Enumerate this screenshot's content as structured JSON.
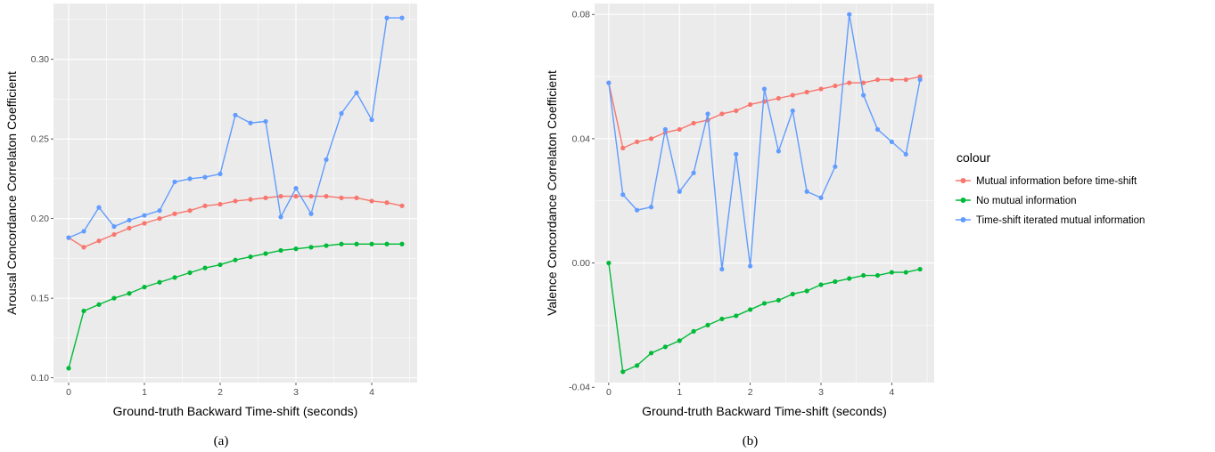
{
  "chart_data": [
    {
      "type": "line",
      "caption": "(a)",
      "xlabel": "Ground-truth Backward Time-shift (seconds)",
      "ylabel": "Arousal Concordance Correlaton Coefficient",
      "xlim": [
        -0.2,
        4.6
      ],
      "ylim": [
        0.097,
        0.335
      ],
      "xticks": [
        0,
        1,
        2,
        3,
        4
      ],
      "xtick_labels": [
        "0",
        "1",
        "2",
        "3",
        "4"
      ],
      "yticks": [
        0.1,
        0.15,
        0.2,
        0.25,
        0.3
      ],
      "ytick_labels": [
        "0.10",
        "0.15",
        "0.20",
        "0.25",
        "0.30"
      ],
      "grid": true,
      "x": [
        0,
        0.2,
        0.4,
        0.6,
        0.8,
        1.0,
        1.2,
        1.4,
        1.6,
        1.8,
        2.0,
        2.2,
        2.4,
        2.6,
        2.8,
        3.0,
        3.2,
        3.4,
        3.6,
        3.8,
        4.0,
        4.2,
        4.4
      ],
      "series": [
        {
          "name": "Mutual information before time-shift",
          "color": "#F8766D",
          "values": [
            0.188,
            0.182,
            0.186,
            0.19,
            0.194,
            0.197,
            0.2,
            0.203,
            0.205,
            0.208,
            0.209,
            0.211,
            0.212,
            0.213,
            0.214,
            0.214,
            0.214,
            0.214,
            0.213,
            0.213,
            0.211,
            0.21,
            0.208
          ]
        },
        {
          "name": "No mutual information",
          "color": "#00BA38",
          "values": [
            0.106,
            0.142,
            0.146,
            0.15,
            0.153,
            0.157,
            0.16,
            0.163,
            0.166,
            0.169,
            0.171,
            0.174,
            0.176,
            0.178,
            0.18,
            0.181,
            0.182,
            0.183,
            0.184,
            0.184,
            0.184,
            0.184,
            0.184
          ]
        },
        {
          "name": "Time-shift iterated mutual information",
          "color": "#619CFF",
          "values": [
            0.188,
            0.192,
            0.207,
            0.195,
            0.199,
            0.202,
            0.205,
            0.223,
            0.225,
            0.226,
            0.228,
            0.265,
            0.26,
            0.261,
            0.201,
            0.219,
            0.203,
            0.237,
            0.266,
            0.279,
            0.262,
            0.326,
            0.326
          ]
        }
      ]
    },
    {
      "type": "line",
      "caption": "(b)",
      "xlabel": "Ground-truth Backward Time-shift (seconds)",
      "ylabel": "Valence Concordance Correlaton Coefficient",
      "xlim": [
        -0.2,
        4.6
      ],
      "ylim": [
        -0.0385,
        0.0835
      ],
      "xticks": [
        0,
        1,
        2,
        3,
        4
      ],
      "xtick_labels": [
        "0",
        "1",
        "2",
        "3",
        "4"
      ],
      "yticks": [
        -0.04,
        0.0,
        0.04,
        0.08
      ],
      "ytick_labels": [
        "-0.04",
        "0.00",
        "0.04",
        "0.08"
      ],
      "grid": true,
      "legend_position": "right",
      "x": [
        0,
        0.2,
        0.4,
        0.6,
        0.8,
        1.0,
        1.2,
        1.4,
        1.6,
        1.8,
        2.0,
        2.2,
        2.4,
        2.6,
        2.8,
        3.0,
        3.2,
        3.4,
        3.6,
        3.8,
        4.0,
        4.2,
        4.4
      ],
      "series": [
        {
          "name": "Mutual information before time-shift",
          "color": "#F8766D",
          "values": [
            0.058,
            0.037,
            0.039,
            0.04,
            0.042,
            0.043,
            0.045,
            0.046,
            0.048,
            0.049,
            0.051,
            0.052,
            0.053,
            0.054,
            0.055,
            0.056,
            0.057,
            0.058,
            0.058,
            0.059,
            0.059,
            0.059,
            0.06
          ]
        },
        {
          "name": "No mutual information",
          "color": "#00BA38",
          "values": [
            0.0,
            -0.035,
            -0.033,
            -0.029,
            -0.027,
            -0.025,
            -0.022,
            -0.02,
            -0.018,
            -0.017,
            -0.015,
            -0.013,
            -0.012,
            -0.01,
            -0.009,
            -0.007,
            -0.006,
            -0.005,
            -0.004,
            -0.004,
            -0.003,
            -0.003,
            -0.002
          ]
        },
        {
          "name": "Time-shift iterated mutual information",
          "color": "#619CFF",
          "values": [
            0.058,
            0.022,
            0.017,
            0.018,
            0.043,
            0.023,
            0.029,
            0.048,
            -0.002,
            0.035,
            -0.001,
            0.056,
            0.036,
            0.049,
            0.023,
            0.021,
            0.031,
            0.08,
            0.054,
            0.043,
            0.039,
            0.035,
            0.059
          ]
        }
      ]
    }
  ],
  "legend": {
    "title": "colour",
    "items": [
      {
        "label": "Mutual information before time-shift",
        "color": "#F8766D"
      },
      {
        "label": "No mutual information",
        "color": "#00BA38"
      },
      {
        "label": "Time-shift iterated mutual information",
        "color": "#619CFF"
      }
    ]
  },
  "colors": {
    "panel_background": "#EBEBEB",
    "grid": "#FFFFFF"
  }
}
